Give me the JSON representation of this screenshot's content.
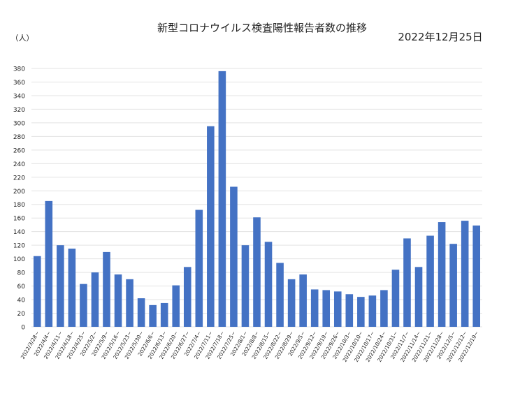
{
  "chart_data": {
    "type": "bar",
    "title": "新型コロナウイルス検査陽性報告者数の推移",
    "date": "2022年12月25日",
    "y_axis_label": "（人）",
    "categories": [
      "2022/3/28~",
      "2022/4/4~",
      "2022/4/11~",
      "2022/4/18~",
      "2022/4/25~",
      "2022/5/2~",
      "2022/5/9~",
      "2022/5/16~",
      "2022/5/23~",
      "2022/5/30~",
      "2022/6/6~",
      "2022/6/13~",
      "2022/6/20~",
      "2022/6/27~",
      "2022/7/4~",
      "2022/7/11~",
      "2022/7/18~",
      "2022/7/25~",
      "2022/8/1~",
      "2022/8/8~",
      "2022/8/15~",
      "2022/8/22~",
      "2022/8/29~",
      "2022/9/5~",
      "2022/9/12~",
      "2022/9/19~",
      "2022/9/26~",
      "2022/10/3~",
      "2022/10/10~",
      "2022/10/17~",
      "2022/10/24~",
      "2022/10/31~",
      "2022/11/7~",
      "2022/11/14~",
      "2022/11/21~",
      "2022/11/28~",
      "2022/12/5~",
      "2022/12/12~",
      "2022/12/19~"
    ],
    "values": [
      104,
      185,
      120,
      115,
      63,
      80,
      110,
      77,
      70,
      42,
      32,
      35,
      61,
      88,
      172,
      295,
      376,
      206,
      120,
      161,
      125,
      94,
      70,
      77,
      55,
      54,
      52,
      48,
      44,
      46,
      54,
      84,
      130,
      88,
      134,
      154,
      122,
      156,
      149
    ],
    "color": "#4472c4",
    "ylim": [
      0,
      380
    ],
    "yticks": [
      0,
      20,
      40,
      60,
      80,
      100,
      120,
      140,
      160,
      180,
      200,
      220,
      240,
      260,
      280,
      300,
      320,
      340,
      360,
      380
    ],
    "grid": true
  }
}
